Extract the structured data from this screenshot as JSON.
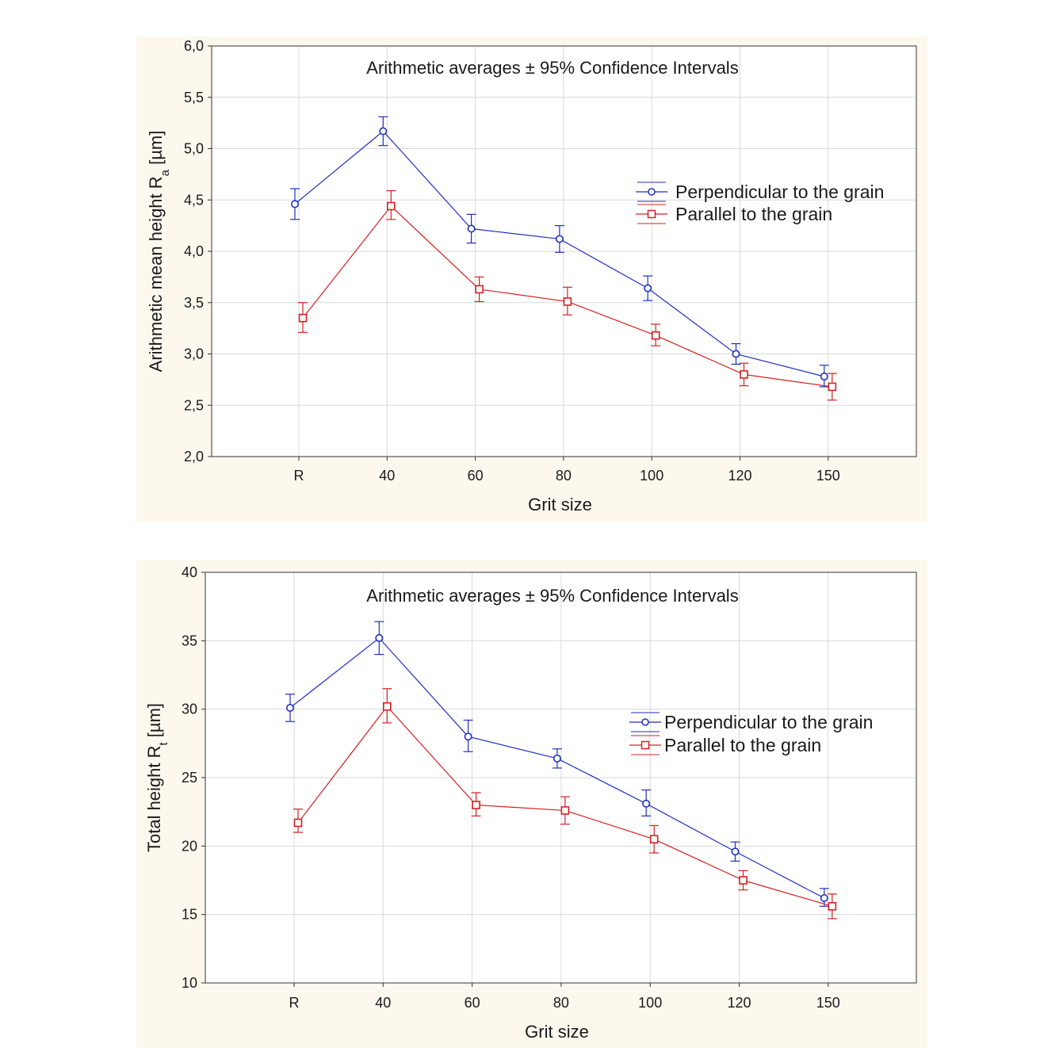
{
  "chart_data": [
    {
      "type": "line",
      "title": "Arithmetic averages ± 95% Confidence Intervals",
      "xlabel": "Grit size",
      "ylabel": "Arithmetic mean height R",
      "ylabel_subscript": "a",
      "ylabel_unit": " [µm]",
      "categories": [
        "R",
        "40",
        "60",
        "80",
        "100",
        "120",
        "150"
      ],
      "ylim": [
        2.0,
        6.0
      ],
      "yticks": [
        2.0,
        2.5,
        3.0,
        3.5,
        4.0,
        4.5,
        5.0,
        5.5,
        6.0
      ],
      "ytick_labels": [
        "2,0",
        "2,5",
        "3,0",
        "3,5",
        "4,0",
        "4,5",
        "5,0",
        "5,5",
        "6,0"
      ],
      "grid": true,
      "legend_position": "center-right",
      "series": [
        {
          "name": "Perpendicular to the grain",
          "color": "#1f2fbf",
          "marker": "circle",
          "values": [
            4.46,
            5.17,
            4.22,
            4.12,
            3.64,
            3.0,
            2.78
          ],
          "ci_low": [
            4.31,
            5.03,
            4.08,
            3.99,
            3.52,
            2.9,
            2.68
          ],
          "ci_high": [
            4.61,
            5.31,
            4.36,
            4.25,
            3.76,
            3.1,
            2.89
          ]
        },
        {
          "name": "Parallel to the grain",
          "color": "#d62020",
          "marker": "square",
          "values": [
            3.35,
            4.44,
            3.63,
            3.51,
            3.18,
            2.8,
            2.68
          ],
          "ci_low": [
            3.21,
            4.31,
            3.51,
            3.38,
            3.08,
            2.69,
            2.55
          ],
          "ci_high": [
            3.5,
            4.59,
            3.75,
            3.65,
            3.29,
            2.91,
            2.81
          ]
        }
      ]
    },
    {
      "type": "line",
      "title": "Arithmetic averages ± 95% Confidence Intervals",
      "xlabel": "Grit size",
      "ylabel": "Total height R",
      "ylabel_subscript": "t",
      "ylabel_unit": " [µm]",
      "categories": [
        "R",
        "40",
        "60",
        "80",
        "100",
        "120",
        "150"
      ],
      "ylim": [
        10,
        40
      ],
      "yticks": [
        10,
        15,
        20,
        25,
        30,
        35,
        40
      ],
      "ytick_labels": [
        "10",
        "15",
        "20",
        "25",
        "30",
        "35",
        "40"
      ],
      "grid": true,
      "legend_position": "center-right",
      "series": [
        {
          "name": "Perpendicular to the grain",
          "color": "#1f2fbf",
          "marker": "circle",
          "values": [
            30.1,
            35.2,
            28.0,
            26.4,
            23.1,
            19.6,
            16.2
          ],
          "ci_low": [
            29.1,
            34.0,
            26.9,
            25.7,
            22.2,
            18.9,
            15.6
          ],
          "ci_high": [
            31.1,
            36.4,
            29.2,
            27.1,
            24.1,
            20.3,
            16.9
          ]
        },
        {
          "name": "Parallel to the grain",
          "color": "#d62020",
          "marker": "square",
          "values": [
            21.7,
            30.2,
            23.0,
            22.6,
            20.5,
            17.5,
            15.6
          ],
          "ci_low": [
            21.0,
            29.0,
            22.2,
            21.6,
            19.5,
            16.8,
            14.7
          ],
          "ci_high": [
            22.7,
            31.5,
            23.9,
            23.6,
            21.5,
            18.2,
            16.5
          ]
        }
      ]
    }
  ]
}
